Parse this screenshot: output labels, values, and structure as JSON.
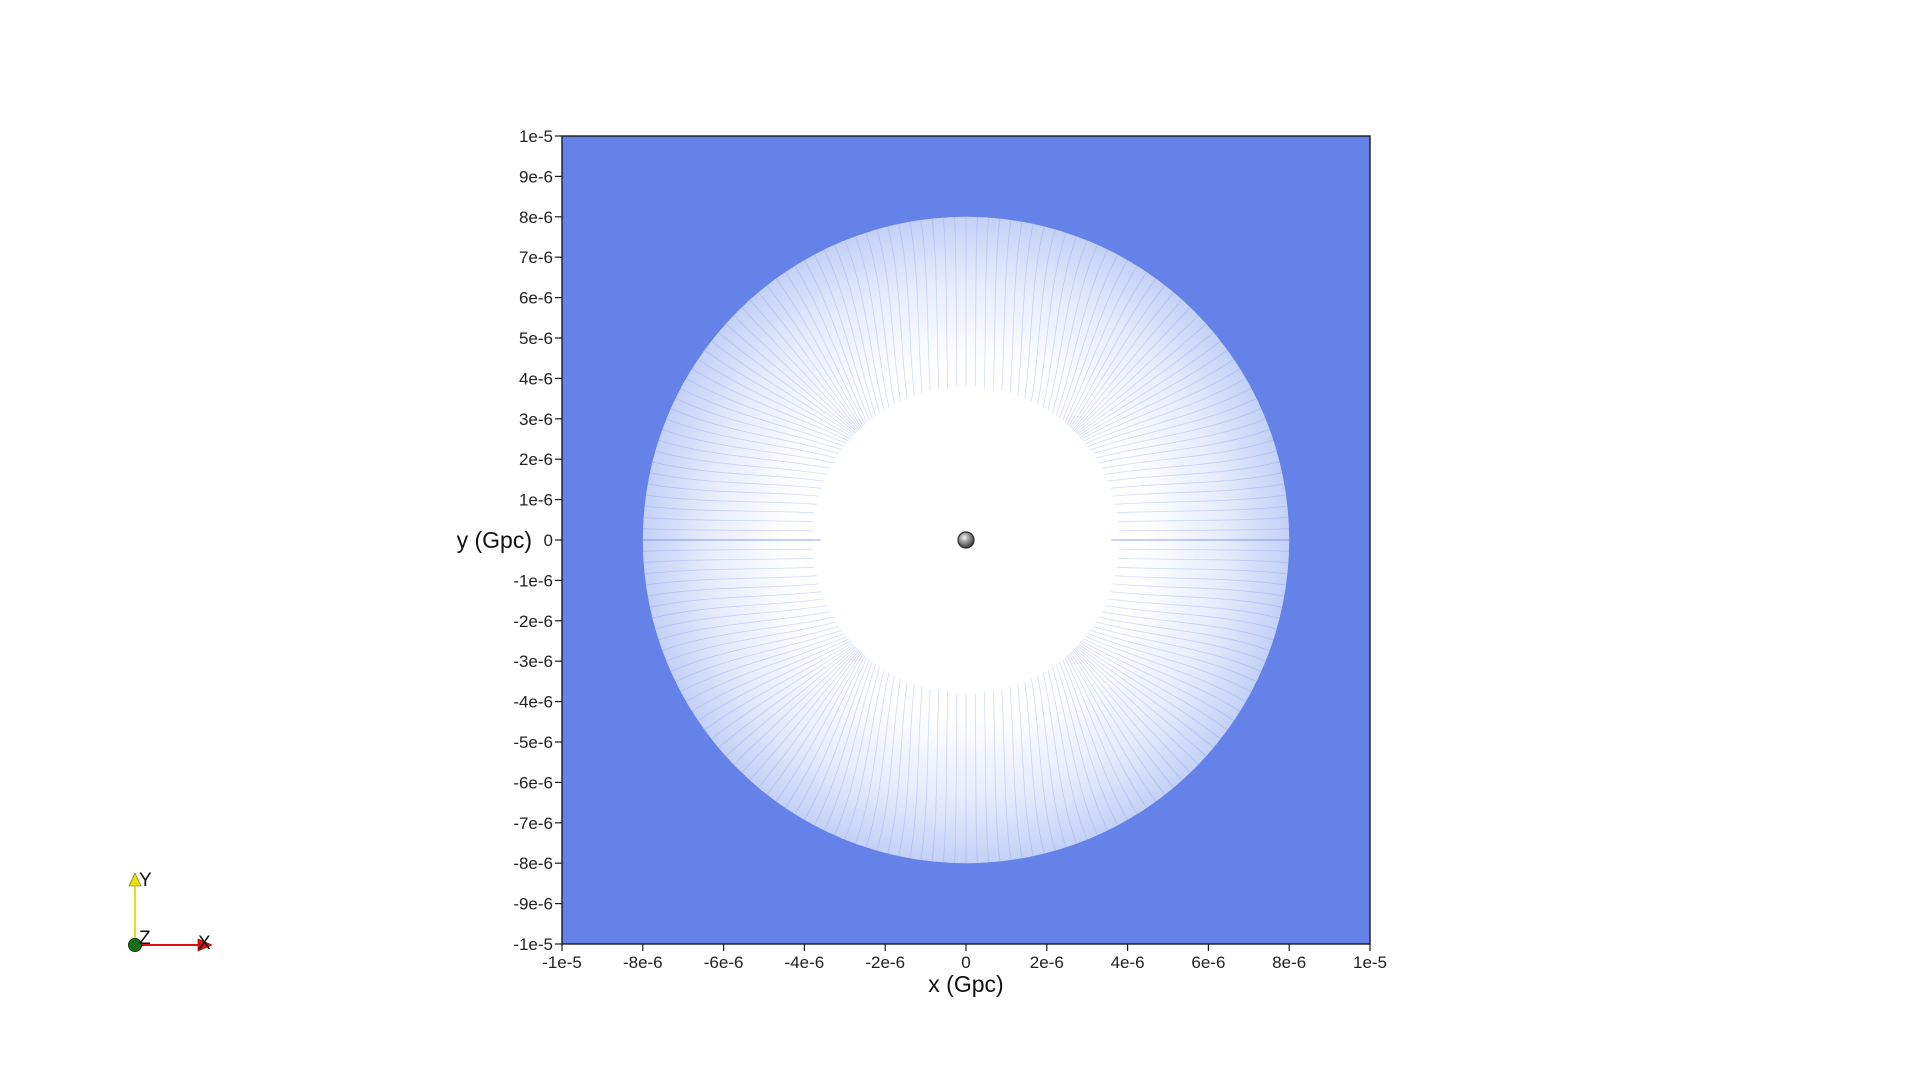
{
  "chart_data": {
    "type": "scatter",
    "title": "",
    "xlabel": "x (Gpc)",
    "ylabel": "y (Gpc)",
    "xlim": [
      -1e-05,
      1e-05
    ],
    "ylim": [
      -1e-05,
      1e-05
    ],
    "x_ticks": [
      -1e-05,
      -8e-06,
      -6e-06,
      -4e-06,
      -2e-06,
      0,
      2e-06,
      4e-06,
      6e-06,
      8e-06,
      1e-05
    ],
    "x_tick_labels": [
      "-1e-5",
      "-8e-6",
      "-6e-6",
      "-4e-6",
      "-2e-6",
      "0",
      "2e-6",
      "4e-6",
      "6e-6",
      "8e-6",
      "1e-5"
    ],
    "y_ticks": [
      1e-05,
      9e-06,
      8e-06,
      7e-06,
      6e-06,
      5e-06,
      4e-06,
      3e-06,
      2e-06,
      1e-06,
      0,
      -1e-06,
      -2e-06,
      -3e-06,
      -4e-06,
      -5e-06,
      -6e-06,
      -7e-06,
      -8e-06,
      -9e-06,
      -1e-05
    ],
    "y_tick_labels": [
      "1e-5",
      "9e-6",
      "8e-6",
      "7e-6",
      "6e-6",
      "5e-6",
      "4e-6",
      "3e-6",
      "2e-6",
      "1e-6",
      "0",
      "-1e-6",
      "-2e-6",
      "-3e-6",
      "-4e-6",
      "-5e-6",
      "-6e-6",
      "-7e-6",
      "-8e-6",
      "-9e-6",
      "-1e-5"
    ],
    "background_color": "#6482e8",
    "disk": {
      "center": [
        0,
        0
      ],
      "outer_radius": 8e-06,
      "inner_radius": 4e-06,
      "color": "#ffffff"
    },
    "central_object": {
      "center": [
        0,
        0
      ],
      "color": "#8a8a8a"
    },
    "grid": false
  },
  "triad": {
    "x_label": "X",
    "y_label": "Y",
    "z_label": "Z",
    "x_color": "#e01010",
    "y_color": "#e8e010",
    "z_color": "#1a6e1a"
  }
}
